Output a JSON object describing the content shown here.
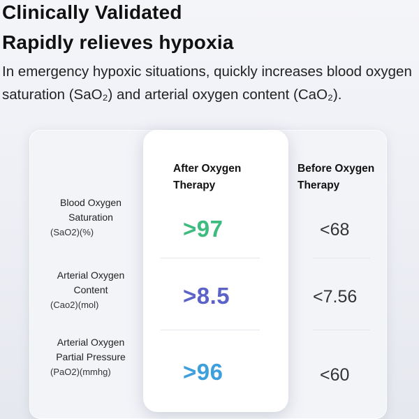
{
  "heading": {
    "line1": "Clinically Validated",
    "line2": "Rapidly relieves hypoxia"
  },
  "description": "In emergency hypoxic situations, quickly increases blood oxygen saturation (SaO₂) and arterial oxygen content (CaO₂).",
  "table": {
    "col_after": "After Oxygen Therapy",
    "col_before": "Before Oxygen Therapy",
    "rows": [
      {
        "label": "Blood Oxygen Saturation",
        "unit": "(SaO2)(%)",
        "after": ">97",
        "before": "<68"
      },
      {
        "label": "Arterial Oxygen Content",
        "unit": "(Cao2)(mol)",
        "after": ">8.5",
        "before": "<7.56"
      },
      {
        "label": "Arterial Oxygen Partial Pressure",
        "unit": "(PaO2)(mmhg)",
        "after": ">96",
        "before": "<60"
      }
    ]
  },
  "colors": {
    "row1_after": "#3ebb7e",
    "row2_after": "#5b63c9",
    "row3_after": "#3e9fdc"
  }
}
